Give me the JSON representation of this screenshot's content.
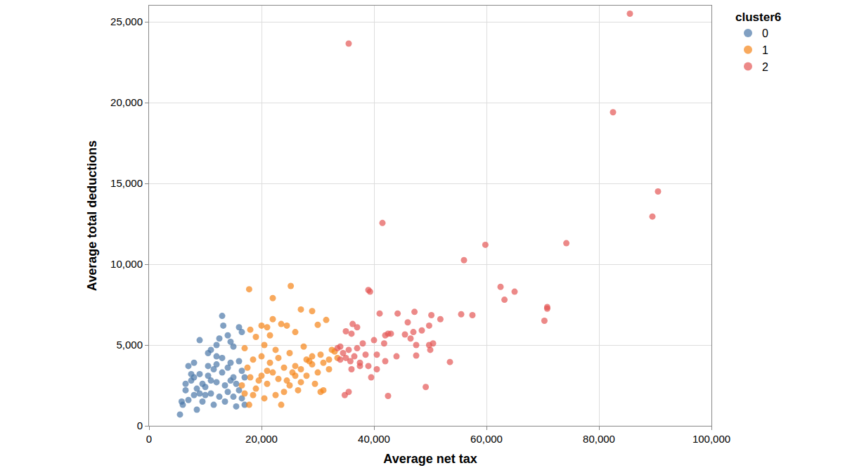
{
  "chart_data": {
    "type": "scatter",
    "x_label": "Average net tax",
    "y_label": "Average total deductions",
    "legend_title": "cluster6",
    "legend": "top right",
    "grid": true,
    "marker": "circle",
    "xlim": [
      0,
      100000
    ],
    "xticks": [
      0,
      {
        "value": 20000,
        "label": "20,000"
      },
      {
        "value": 40000,
        "label": "40,000"
      },
      {
        "value": 60000,
        "label": "60,000"
      },
      {
        "value": 80000,
        "label": "80,000"
      },
      {
        "value": 100000,
        "label": "100,000"
      }
    ],
    "ylim": [
      0,
      26000
    ],
    "yticks": [
      0,
      {
        "value": 5000,
        "label": "5,000"
      },
      {
        "value": 10000,
        "label": "10,000"
      },
      {
        "value": 15000,
        "label": "15,000"
      },
      {
        "value": 20000,
        "label": "20,000"
      },
      {
        "value": 25000,
        "label": "25,000"
      }
    ],
    "series": [
      {
        "name": "0",
        "color": "#4c78a8",
        "x": [
          5500,
          6000,
          5800,
          6500,
          7000,
          8000,
          9000,
          10500,
          11000,
          12000,
          13000,
          13200,
          14000,
          15000,
          16000,
          16500,
          14500,
          12500,
          7500,
          8000,
          8500,
          9500,
          10000,
          10500,
          11000,
          11500,
          12000,
          12500,
          13000,
          13500,
          14000,
          14500,
          15000,
          15500,
          16000,
          16500,
          17000,
          15500,
          16000,
          17000,
          9000,
          9500,
          10000,
          11000,
          12000,
          13000,
          14000,
          8500,
          7000,
          6500,
          7500,
          10500,
          12000,
          13500,
          15000,
          11500,
          9000,
          14500,
          16500,
          8000
        ],
        "values": [
          700,
          1300,
          1500,
          2200,
          3700,
          3900,
          5300,
          4500,
          4700,
          5000,
          6800,
          6200,
          5600,
          4900,
          6100,
          5800,
          5200,
          5400,
          2800,
          1900,
          1000,
          1500,
          2400,
          3100,
          2000,
          3500,
          2700,
          1800,
          3300,
          2500,
          2100,
          3900,
          3000,
          2600,
          2200,
          1700,
          1300,
          1200,
          4000,
          3000,
          3200,
          2600,
          1900,
          2800,
          3800,
          4200,
          3600,
          2300,
          1600,
          2600,
          3200,
          3700,
          4300,
          1500,
          1800,
          1300,
          2000,
          2800,
          3400,
          3000
        ]
      },
      {
        "name": "1",
        "color": "#f58518",
        "x": [
          17800,
          25200,
          22000,
          27000,
          29000,
          22000,
          31500,
          20000,
          21000,
          23500,
          24500,
          18000,
          21500,
          26000,
          30000,
          19000,
          17000,
          20500,
          22500,
          25000,
          27500,
          29000,
          30500,
          32500,
          33000,
          31000,
          28000,
          26000,
          24000,
          22000,
          20000,
          18000,
          19500,
          21000,
          23000,
          25000,
          27000,
          29500,
          31000,
          30500,
          26500,
          22500,
          20500,
          18500,
          17800,
          23500,
          19000,
          24000,
          28000,
          32000,
          33500,
          17500,
          18500,
          20000,
          21500,
          23000,
          25500,
          27000,
          29000,
          30000,
          16500,
          17000,
          21000,
          24500,
          26000,
          28500,
          32000
        ],
        "values": [
          8450,
          8650,
          7900,
          7200,
          7100,
          6600,
          6550,
          6200,
          6100,
          6300,
          6200,
          5950,
          5600,
          5800,
          6250,
          5500,
          4800,
          5000,
          4700,
          4500,
          4900,
          4300,
          4400,
          4700,
          4600,
          3900,
          4100,
          3700,
          3600,
          3300,
          3100,
          3000,
          2800,
          2600,
          2900,
          2500,
          2700,
          2600,
          2200,
          2100,
          2200,
          1900,
          1700,
          1900,
          1300,
          1300,
          2300,
          2100,
          3100,
          3500,
          4200,
          3600,
          4100,
          4300,
          3900,
          4200,
          3300,
          3500,
          3800,
          3300,
          2500,
          2000,
          3400,
          2800,
          3100,
          4000,
          4100
        ]
      },
      {
        "name": "2",
        "color": "#e45756",
        "x": [
          85500,
          35500,
          82500,
          90500,
          89500,
          41500,
          74200,
          59800,
          56000,
          62500,
          65000,
          63200,
          39000,
          39300,
          70800,
          70800,
          70300,
          55500,
          57500,
          47200,
          44200,
          41000,
          50200,
          51800,
          49800,
          46000,
          48500,
          47000,
          45500,
          46500,
          50500,
          49800,
          47500,
          50000,
          47500,
          42500,
          42000,
          43000,
          37000,
          36200,
          35000,
          36000,
          38000,
          40000,
          41800,
          34000,
          33500,
          35500,
          37000,
          38500,
          40500,
          42000,
          44000,
          34500,
          36500,
          35000,
          37500,
          39000,
          40500,
          36000,
          39500,
          34800,
          35500,
          42500,
          49200,
          53500,
          34000,
          35800,
          37500
        ],
        "values": [
          25500,
          23650,
          19400,
          14500,
          12950,
          12550,
          11300,
          11200,
          10250,
          8600,
          8300,
          7800,
          8400,
          8300,
          7350,
          7250,
          6500,
          6900,
          6850,
          7050,
          6950,
          6950,
          6850,
          6600,
          6200,
          6400,
          5900,
          5800,
          5650,
          5400,
          5100,
          5000,
          5000,
          4700,
          4350,
          5700,
          5600,
          5700,
          6100,
          6300,
          5850,
          5700,
          5100,
          5300,
          5100,
          4900,
          4800,
          4700,
          4800,
          4400,
          4400,
          4000,
          4300,
          4500,
          4300,
          4200,
          3900,
          3700,
          3500,
          3500,
          3000,
          1900,
          2100,
          1850,
          2400,
          3950,
          4100,
          4000,
          3700
        ]
      }
    ]
  }
}
